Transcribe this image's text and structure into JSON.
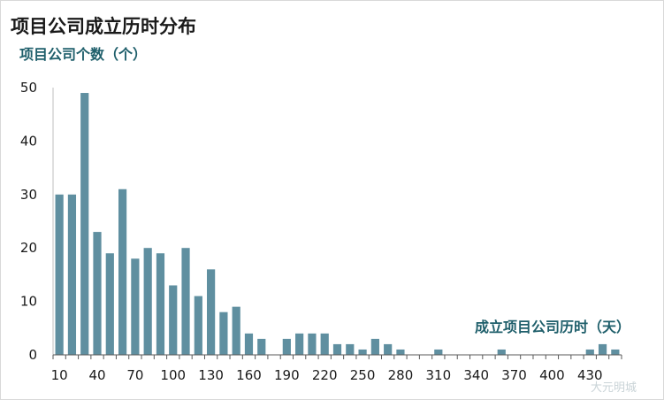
{
  "chart_data": {
    "type": "bar",
    "title": "项目公司成立历时分布",
    "ylabel": "项目公司个数（个）",
    "xlabel": "成立项目公司历时（天）",
    "x": [
      10,
      20,
      30,
      40,
      50,
      60,
      70,
      80,
      90,
      100,
      110,
      120,
      130,
      140,
      150,
      160,
      170,
      180,
      190,
      200,
      210,
      220,
      230,
      240,
      250,
      260,
      270,
      280,
      290,
      300,
      310,
      320,
      330,
      340,
      350,
      360,
      370,
      380,
      390,
      400,
      410,
      420,
      430,
      440,
      450
    ],
    "values": [
      30,
      30,
      49,
      23,
      19,
      31,
      18,
      20,
      19,
      13,
      20,
      11,
      16,
      8,
      9,
      4,
      3,
      0,
      3,
      4,
      4,
      4,
      2,
      2,
      1,
      3,
      2,
      1,
      0,
      0,
      1,
      0,
      0,
      0,
      0,
      1,
      0,
      0,
      0,
      0,
      0,
      0,
      1,
      2,
      1
    ],
    "x_tick_labels": [
      "10",
      "40",
      "70",
      "100",
      "130",
      "160",
      "190",
      "220",
      "250",
      "280",
      "310",
      "340",
      "370",
      "400",
      "430"
    ],
    "y_tick_labels": [
      "0",
      "10",
      "20",
      "30",
      "40",
      "50"
    ],
    "ylim": [
      0,
      50
    ],
    "grid": false,
    "legend": "none",
    "bar_color": "#5f8fa0"
  },
  "watermark": "大元明城"
}
